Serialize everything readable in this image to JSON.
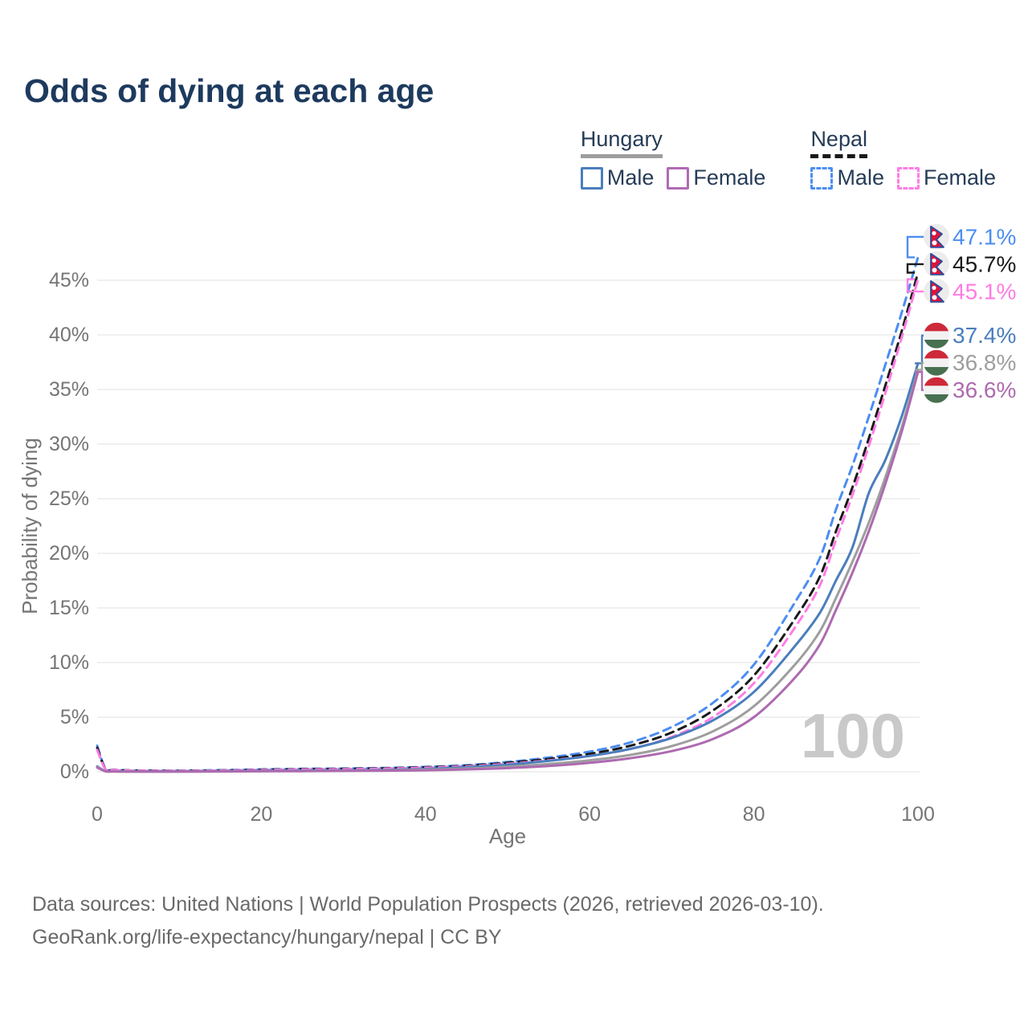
{
  "title": "Odds of dying at each age",
  "watermark_age": "100",
  "footer": {
    "line1": "Data sources: United Nations | World Population Prospects (2026, retrieved 2026-03-10).",
    "line2": "GeoRank.org/life-expectancy/hungary/nepal | CC BY"
  },
  "legend": {
    "groups": [
      {
        "label": "Hungary",
        "underline_color": "#9e9e9e",
        "underline_style": "solid",
        "items": [
          {
            "label": "Male",
            "color": "#4a7ebc",
            "dash": false
          },
          {
            "label": "Female",
            "color": "#b06ab4",
            "dash": false
          }
        ]
      },
      {
        "label": "Nepal",
        "underline_color": "#1a1a1a",
        "underline_style": "dashed",
        "items": [
          {
            "label": "Male",
            "color": "#4c8df2",
            "dash": true
          },
          {
            "label": "Female",
            "color": "#ff7ce4",
            "dash": true
          }
        ]
      }
    ]
  },
  "colors": {
    "title": "#1d3a5e",
    "axis_text": "#757575",
    "gridline": "#ececec",
    "watermark": "#c9c9c9",
    "footer_text": "#696969",
    "hungary_male": "#4a7ebc",
    "hungary_female": "#b06ab4",
    "hungary_both": "#9e9e9e",
    "nepal_male": "#4c8df2",
    "nepal_female": "#ff7ce4",
    "nepal_both": "#1a1a1a"
  },
  "chart_data": {
    "type": "line",
    "title": "Odds of dying at each age",
    "xlabel": "Age",
    "ylabel": "Probability of dying",
    "x_ticks": [
      0,
      20,
      40,
      60,
      80,
      100
    ],
    "y_ticks_percent": [
      0,
      5,
      10,
      15,
      20,
      25,
      30,
      35,
      40,
      45
    ],
    "xlim": [
      0,
      100
    ],
    "ylim_percent": [
      0,
      49
    ],
    "grid": "horizontal-only",
    "legend_position": "top-right",
    "x_ages": [
      0,
      1,
      2,
      3,
      5,
      10,
      15,
      20,
      25,
      30,
      35,
      40,
      45,
      50,
      55,
      60,
      65,
      70,
      75,
      80,
      85,
      88,
      90,
      92,
      94,
      96,
      98,
      100
    ],
    "series": [
      {
        "id": "nepal-male",
        "name": "Nepal Male",
        "country": "Nepal",
        "sex": "Male",
        "color": "#4c8df2",
        "dash": true,
        "flag": "nepal",
        "end_label": "47.1%",
        "end_value": 47.1,
        "values": [
          2.4,
          0.3,
          0.2,
          0.15,
          0.12,
          0.1,
          0.15,
          0.22,
          0.27,
          0.3,
          0.35,
          0.45,
          0.6,
          0.9,
          1.3,
          1.85,
          2.7,
          4.1,
          6.3,
          9.8,
          15.5,
          19.5,
          24.0,
          28.0,
          32.5,
          37.2,
          42.0,
          47.1
        ]
      },
      {
        "id": "nepal-both",
        "name": "Nepal Both sexes",
        "country": "Nepal",
        "sex": "Both",
        "color": "#1a1a1a",
        "dash": true,
        "flag": "nepal",
        "end_label": "45.7%",
        "end_value": 45.7,
        "values": [
          2.2,
          0.27,
          0.18,
          0.14,
          0.11,
          0.09,
          0.13,
          0.19,
          0.24,
          0.27,
          0.32,
          0.41,
          0.55,
          0.82,
          1.18,
          1.65,
          2.4,
          3.6,
          5.6,
          8.8,
          14.0,
          17.8,
          22.0,
          26.0,
          30.5,
          35.3,
          40.3,
          45.7
        ]
      },
      {
        "id": "nepal-female",
        "name": "Nepal Female",
        "country": "Nepal",
        "sex": "Female",
        "color": "#ff7ce4",
        "dash": true,
        "flag": "nepal",
        "end_label": "45.1%",
        "end_value": 45.1,
        "values": [
          2.0,
          0.25,
          0.17,
          0.13,
          0.1,
          0.08,
          0.12,
          0.17,
          0.21,
          0.24,
          0.29,
          0.37,
          0.5,
          0.73,
          1.05,
          1.45,
          2.1,
          3.2,
          5.0,
          8.1,
          13.2,
          17.0,
          21.2,
          25.3,
          29.8,
          34.6,
          39.7,
          45.1
        ]
      },
      {
        "id": "hungary-male",
        "name": "Hungary Male",
        "country": "Hungary",
        "sex": "Male",
        "color": "#4a7ebc",
        "dash": false,
        "flag": "hungary",
        "end_label": "37.4%",
        "end_value": 37.4,
        "values": [
          0.5,
          0.06,
          0.04,
          0.03,
          0.03,
          0.03,
          0.06,
          0.09,
          0.11,
          0.13,
          0.17,
          0.26,
          0.42,
          0.65,
          1.0,
          1.45,
          2.1,
          3.1,
          4.7,
          7.3,
          11.5,
          14.5,
          17.5,
          20.5,
          25.5,
          28.5,
          32.5,
          37.4
        ]
      },
      {
        "id": "hungary-both",
        "name": "Hungary Both sexes",
        "country": "Hungary",
        "sex": "Both",
        "color": "#9e9e9e",
        "dash": false,
        "flag": "hungary",
        "end_label": "36.8%",
        "end_value": 36.8,
        "values": [
          0.45,
          0.05,
          0.04,
          0.03,
          0.02,
          0.02,
          0.04,
          0.06,
          0.08,
          0.1,
          0.13,
          0.19,
          0.3,
          0.47,
          0.72,
          1.05,
          1.55,
          2.35,
          3.7,
          6.0,
          9.8,
          12.8,
          15.9,
          19.2,
          22.8,
          26.9,
          31.5,
          36.8
        ]
      },
      {
        "id": "hungary-female",
        "name": "Hungary Female",
        "country": "Hungary",
        "sex": "Female",
        "color": "#ad6ab0",
        "dash": false,
        "flag": "hungary",
        "end_label": "36.6%",
        "end_value": 36.6,
        "values": [
          0.4,
          0.05,
          0.03,
          0.02,
          0.02,
          0.02,
          0.03,
          0.05,
          0.06,
          0.08,
          0.1,
          0.14,
          0.22,
          0.34,
          0.53,
          0.82,
          1.25,
          1.9,
          3.0,
          5.0,
          8.6,
          11.6,
          14.8,
          18.2,
          22.0,
          26.3,
          31.1,
          36.6
        ]
      }
    ]
  }
}
